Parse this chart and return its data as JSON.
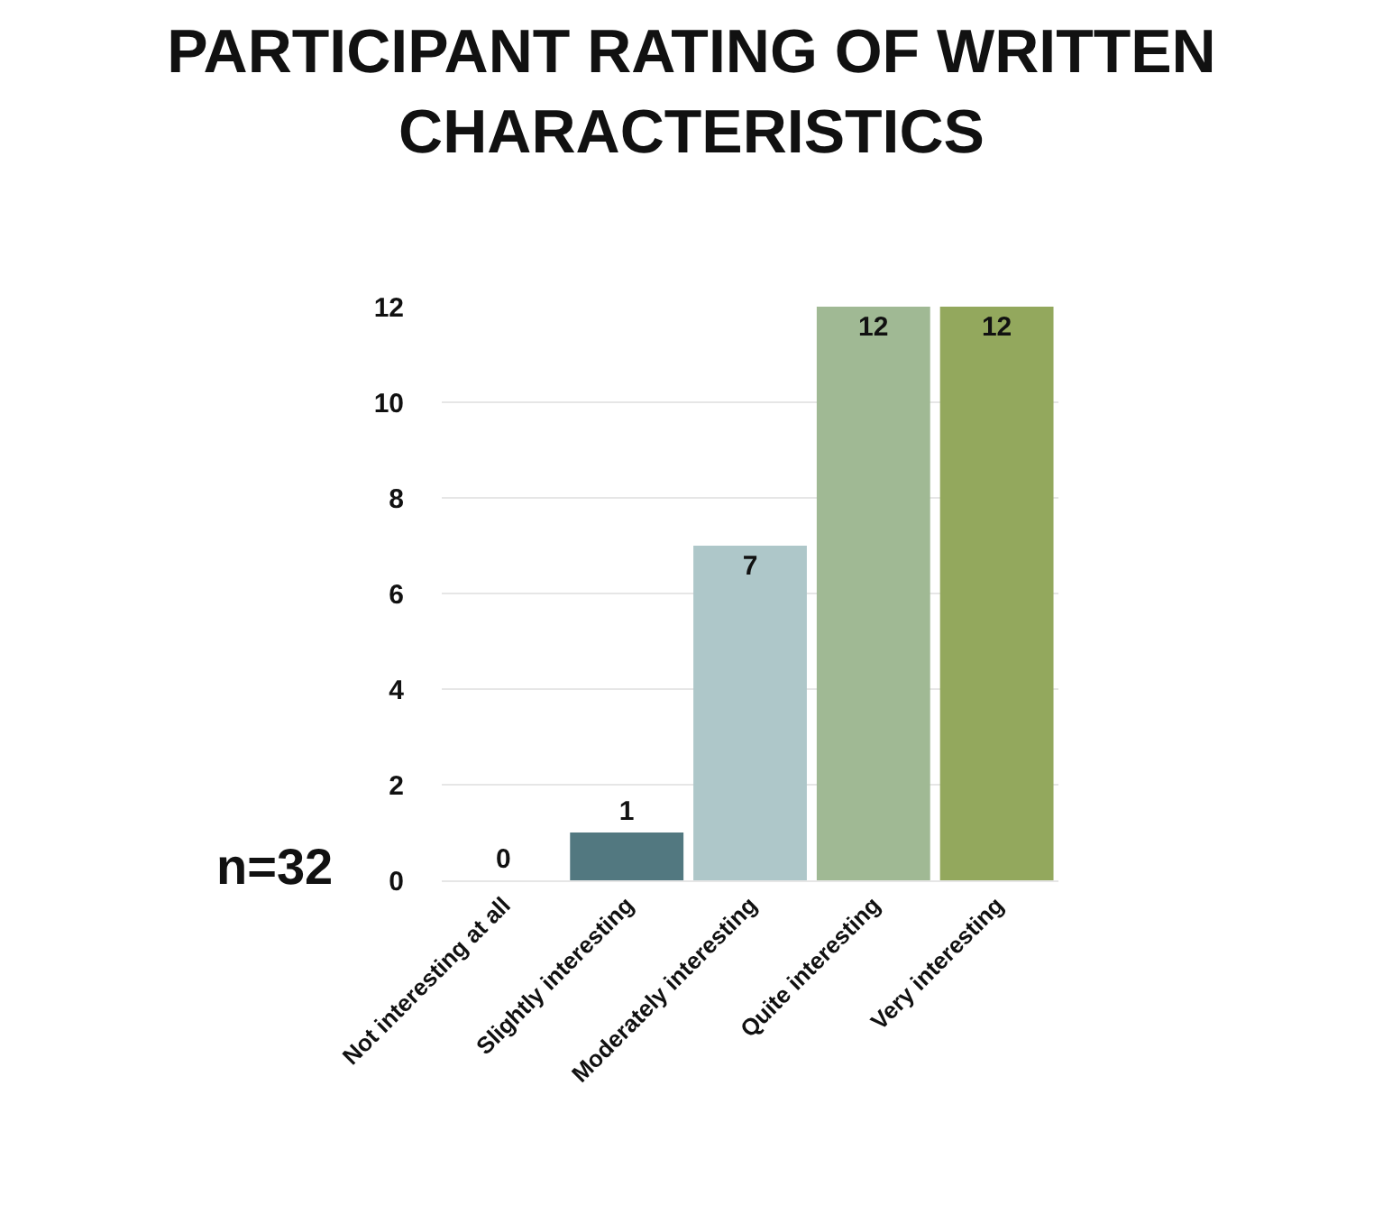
{
  "chart_data": {
    "type": "bar",
    "title": "PARTICIPANT RATING OF WRITTEN CHARACTERISTICS",
    "categories": [
      "Not interesting at all",
      "Slightly interesting",
      "Moderately interesting",
      "Quite interesting",
      "Very interesting"
    ],
    "values": [
      0,
      1,
      7,
      12,
      12
    ],
    "colors": [
      "#527880",
      "#527880",
      "#aec7c9",
      "#a0b994",
      "#93a85d"
    ],
    "ylim": [
      0,
      12
    ],
    "yticks": [
      0,
      2,
      4,
      6,
      8,
      10,
      12
    ],
    "grid": "y",
    "data_labels": true,
    "annotations": [
      "n=32"
    ]
  }
}
